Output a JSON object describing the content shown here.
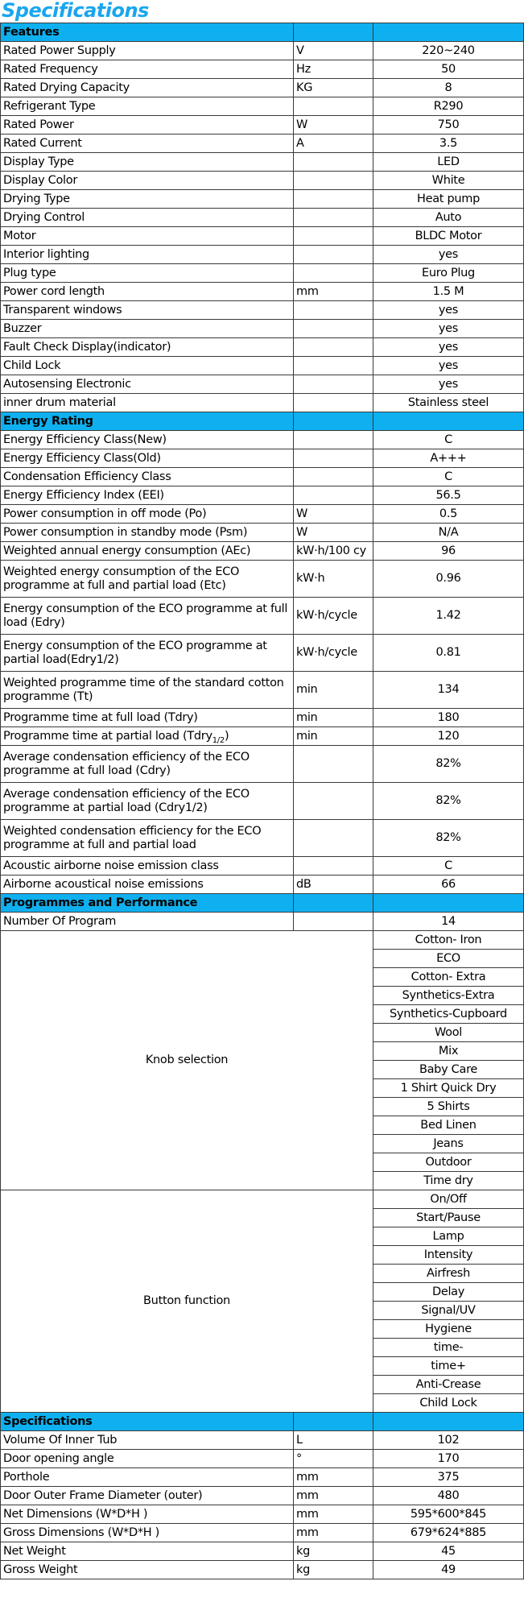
{
  "title": "Specifications",
  "sections": [
    {
      "heading": "Features",
      "rows": [
        {
          "param": "Rated Power Supply",
          "unit": "V",
          "value": "220~240"
        },
        {
          "param": "Rated Frequency",
          "unit": "Hz",
          "value": "50"
        },
        {
          "param": "Rated Drying Capacity",
          "unit": "KG",
          "value": "8"
        },
        {
          "param": "Refrigerant Type",
          "unit": "",
          "value": "R290"
        },
        {
          "param": "Rated Power",
          "unit": "W",
          "value": "750"
        },
        {
          "param": "Rated Current",
          "unit": "A",
          "value": "3.5"
        },
        {
          "param": "Display Type",
          "unit": "",
          "value": "LED"
        },
        {
          "param": "Display Color",
          "unit": "",
          "value": "White"
        },
        {
          "param": "Drying Type",
          "unit": "",
          "value": "Heat pump"
        },
        {
          "param": "Drying Control",
          "unit": "",
          "value": "Auto"
        },
        {
          "param": "Motor",
          "unit": "",
          "value": "BLDC Motor"
        },
        {
          "param": "Interior lighting",
          "unit": "",
          "value": "yes"
        },
        {
          "param": "Plug type",
          "unit": "",
          "value": "Euro Plug"
        },
        {
          "param": "Power cord length",
          "unit": "mm",
          "value": "1.5 M"
        },
        {
          "param": "Transparent windows",
          "unit": "",
          "value": "yes"
        },
        {
          "param": "Buzzer",
          "unit": "",
          "value": "yes"
        },
        {
          "param": "Fault Check Display(indicator)",
          "unit": "",
          "value": "yes"
        },
        {
          "param": "Child  Lock",
          "unit": "",
          "value": "yes"
        },
        {
          "param": "Autosensing Electronic",
          "unit": "",
          "value": "yes"
        },
        {
          "param": "inner drum material",
          "unit": "",
          "value": "Stainless steel"
        }
      ]
    },
    {
      "heading": "Energy Rating",
      "rows": [
        {
          "param": "Energy Efficiency Class(New)",
          "unit": "",
          "value": "C"
        },
        {
          "param": "Energy Efficiency Class(Old)",
          "unit": "",
          "value": "A+++"
        },
        {
          "param": "Condensation Efficiency Class",
          "unit": "",
          "value": "C"
        },
        {
          "param": "Energy Efficiency Index (EEI)",
          "unit": "",
          "value": "56.5"
        },
        {
          "param": "Power consumption in off mode (Po)",
          "unit": "W",
          "value": "0.5"
        },
        {
          "param": "Power consumption in standby mode (Psm)",
          "unit": "W",
          "value": "N/A"
        },
        {
          "param": "Weighted annual energy consumption (AEc)",
          "unit": "kW·h/100 cy",
          "value": "96"
        },
        {
          "param": "Weighted energy consumption of the ECO programme at full and partial load (Etc)",
          "unit": "kW·h",
          "value": "0.96"
        },
        {
          "param": "Energy consumption of the ECO programme at full load (Edry)",
          "unit": "kW·h/cycle",
          "value": "1.42"
        },
        {
          "param": "Energy consumption of the ECO programme at  partial load(Edry1/2)",
          "unit": "kW·h/cycle",
          "value": "0.81"
        },
        {
          "param": "Weighted programme time of the standard cotton programme (Tt)",
          "unit": "min",
          "value": "134"
        },
        {
          "param": "Programme time at full load (Tdry)",
          "unit": "min",
          "value": "180"
        },
        {
          "param": "Programme time at partial load (Tdry",
          "param_sub": "1/2",
          "param_after": ")",
          "unit": "min",
          "value": "120"
        },
        {
          "param": "Average condensation efficiency of the ECO programme at full load (Cdry)",
          "unit": "",
          "value": "82%"
        },
        {
          "param": "Average condensation efficiency of the ECO programme at partial load (Cdry1/2)",
          "unit": "",
          "value": "82%"
        },
        {
          "param": "Weighted condensation efficiency for the ECO programme at full and partial load",
          "unit": "",
          "value": "82%"
        },
        {
          "param": "Acoustic airborne noise emission class",
          "unit": "",
          "value": "C"
        },
        {
          "param": "Airborne acoustical noise emissions",
          "unit": "dB",
          "value": "66"
        }
      ]
    },
    {
      "heading": "Programmes and Performance",
      "number_of_program": {
        "label": "Number Of Program",
        "value": "14"
      },
      "knob_selection": {
        "label": "Knob selection",
        "items": [
          "Cotton- Iron",
          "ECO",
          "Cotton- Extra",
          "Synthetics-Extra",
          "Synthetics-Cupboard",
          "Wool",
          "Mix",
          "Baby Care",
          "1 Shirt Quick Dry",
          "5 Shirts",
          "Bed Linen",
          "Jeans",
          "Outdoor",
          "Time dry"
        ]
      },
      "button_function": {
        "label": "Button function",
        "items": [
          "On/Off",
          "Start/Pause",
          "Lamp",
          "Intensity",
          "Airfresh",
          "Delay",
          "Signal/UV",
          "Hygiene",
          "time-",
          "time+",
          "Anti-Crease",
          "Child Lock"
        ]
      }
    },
    {
      "heading": "Specifications",
      "rows": [
        {
          "param": "Volume Of Inner Tub",
          "unit": "L",
          "value": "102"
        },
        {
          "param": "Door opening angle",
          "unit": "°",
          "value": "170"
        },
        {
          "param": "Porthole",
          "unit": "mm",
          "value": "375"
        },
        {
          "param": "Door Outer Frame Diameter (outer)",
          "unit": "mm",
          "value": "480"
        },
        {
          "param": "Net Dimensions  (W*D*H )",
          "unit": "mm",
          "value": "595*600*845"
        },
        {
          "param": "Gross Dimensions  (W*D*H )",
          "unit": "mm",
          "value": "679*624*885"
        },
        {
          "param": "Net  Weight",
          "unit": "kg",
          "value": "45"
        },
        {
          "param": "Gross Weight",
          "unit": "kg",
          "value": "49"
        }
      ]
    }
  ]
}
